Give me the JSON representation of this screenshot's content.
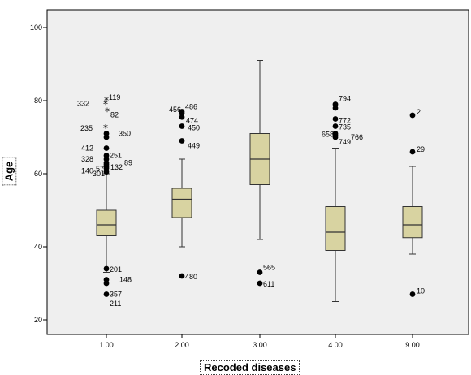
{
  "chart_data": {
    "type": "boxplot",
    "xlabel": "Recoded diseases",
    "ylabel": "Age",
    "ylim": [
      18,
      104
    ],
    "yticks": [
      20,
      40,
      60,
      80,
      100
    ],
    "grid": false,
    "colors": {
      "plot_bg": "#efefef",
      "box_fill": "#d8d3a1",
      "box_stroke": "#333333"
    },
    "categories": [
      "1.00",
      "2.00",
      "3.00",
      "4.00",
      "9.00"
    ],
    "boxes": [
      {
        "category": "1.00",
        "whisker_low": 33,
        "q1": 43,
        "median": 46,
        "q3": 50,
        "whisker_high": 60
      },
      {
        "category": "2.00",
        "whisker_low": 40,
        "q1": 48,
        "median": 53,
        "q3": 56,
        "whisker_high": 64
      },
      {
        "category": "3.00",
        "whisker_low": 42,
        "q1": 57,
        "median": 64,
        "q3": 71,
        "whisker_high": 91
      },
      {
        "category": "4.00",
        "whisker_low": 25,
        "q1": 39,
        "median": 44,
        "q3": 51,
        "whisker_high": 67
      },
      {
        "category": "9.00",
        "whisker_low": 38,
        "q1": 42.5,
        "median": 46,
        "q3": 51,
        "whisker_high": 62
      }
    ],
    "outliers": [
      {
        "category": "1.00",
        "value": 79,
        "kind": "extreme",
        "label": "332"
      },
      {
        "category": "1.00",
        "value": 80,
        "kind": "extreme",
        "label": "119"
      },
      {
        "category": "1.00",
        "value": 77,
        "kind": "extreme",
        "label": "82"
      },
      {
        "category": "1.00",
        "value": 72.5,
        "kind": "extreme",
        "label": "235"
      },
      {
        "category": "1.00",
        "value": 71,
        "kind": "outlier",
        "label": "350"
      },
      {
        "category": "1.00",
        "value": 70,
        "kind": "outlier",
        "label": ""
      },
      {
        "category": "1.00",
        "value": 67,
        "kind": "outlier",
        "label": "412"
      },
      {
        "category": "1.00",
        "value": 65,
        "kind": "outlier",
        "label": "251"
      },
      {
        "category": "1.00",
        "value": 64,
        "kind": "outlier",
        "label": "328"
      },
      {
        "category": "1.00",
        "value": 63,
        "kind": "outlier",
        "label": "89"
      },
      {
        "category": "1.00",
        "value": 62.5,
        "kind": "outlier",
        "label": "132"
      },
      {
        "category": "1.00",
        "value": 62,
        "kind": "outlier",
        "label": "57"
      },
      {
        "category": "1.00",
        "value": 61.5,
        "kind": "outlier",
        "label": "140"
      },
      {
        "category": "1.00",
        "value": 60.5,
        "kind": "outlier",
        "label": "301"
      },
      {
        "category": "1.00",
        "value": 34,
        "kind": "outlier",
        "label": "201"
      },
      {
        "category": "1.00",
        "value": 31,
        "kind": "outlier",
        "label": "148"
      },
      {
        "category": "1.00",
        "value": 30,
        "kind": "outlier",
        "label": ""
      },
      {
        "category": "1.00",
        "value": 27,
        "kind": "outlier",
        "label": "357"
      },
      {
        "category": "1.00",
        "value": 24.5,
        "kind": "label-only",
        "label": "211"
      },
      {
        "category": "2.00",
        "value": 76.5,
        "kind": "outlier",
        "label": "456"
      },
      {
        "category": "2.00",
        "value": 77,
        "kind": "outlier",
        "label": "486"
      },
      {
        "category": "2.00",
        "value": 75.5,
        "kind": "outlier",
        "label": "474"
      },
      {
        "category": "2.00",
        "value": 73,
        "kind": "outlier",
        "label": "450"
      },
      {
        "category": "2.00",
        "value": 69,
        "kind": "outlier",
        "label": "449"
      },
      {
        "category": "2.00",
        "value": 32,
        "kind": "outlier",
        "label": "480"
      },
      {
        "category": "3.00",
        "value": 33,
        "kind": "outlier",
        "label": "565"
      },
      {
        "category": "3.00",
        "value": 30,
        "kind": "outlier",
        "label": "611"
      },
      {
        "category": "4.00",
        "value": 79,
        "kind": "outlier",
        "label": "794"
      },
      {
        "category": "4.00",
        "value": 78,
        "kind": "outlier",
        "label": ""
      },
      {
        "category": "4.00",
        "value": 75,
        "kind": "outlier",
        "label": "772"
      },
      {
        "category": "4.00",
        "value": 73,
        "kind": "outlier",
        "label": "735"
      },
      {
        "category": "4.00",
        "value": 71,
        "kind": "outlier",
        "label": "658"
      },
      {
        "category": "4.00",
        "value": 70.5,
        "kind": "outlier",
        "label": "766"
      },
      {
        "category": "4.00",
        "value": 70,
        "kind": "outlier",
        "label": "749"
      },
      {
        "category": "9.00",
        "value": 76,
        "kind": "outlier",
        "label": "2"
      },
      {
        "category": "9.00",
        "value": 66,
        "kind": "outlier",
        "label": "29"
      },
      {
        "category": "9.00",
        "value": 27,
        "kind": "outlier",
        "label": "10"
      }
    ]
  }
}
